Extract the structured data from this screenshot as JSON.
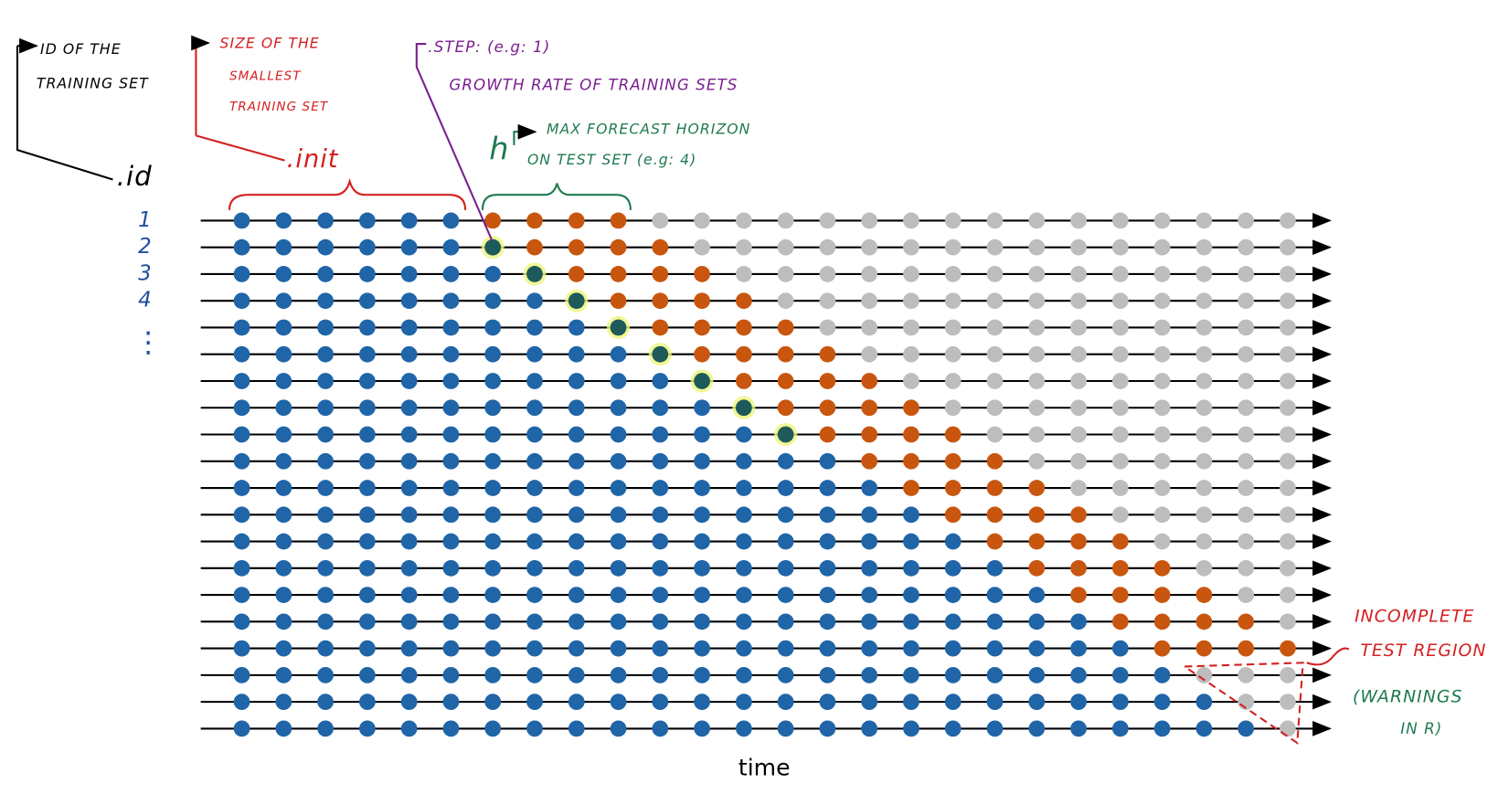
{
  "id_label": {
    "lines": [
      "ID OF THE",
      "TRAINING SET"
    ],
    "name": ".id"
  },
  "init_label": {
    "lines": [
      "SIZE OF THE",
      "SMALLEST",
      "TRAINING SET"
    ],
    "name": ".init"
  },
  "step_label": {
    "lines": [
      ".STEP: (e.g: 1)",
      "GROWTH RATE OF TRAINING SETS"
    ]
  },
  "h_label": {
    "name": "h",
    "lines": [
      "MAX FORECAST HORIZON",
      "ON TEST SET (e.g: 4)"
    ]
  },
  "row_ids": [
    "1",
    "2",
    "3",
    "4"
  ],
  "row_ellipsis": "⋮",
  "incomplete_label": {
    "lines": [
      "INCOMPLETE",
      "TEST REGION"
    ]
  },
  "warning_label": {
    "lines": [
      "(WARNINGS",
      "IN R)"
    ]
  },
  "x_axis_label": "time"
}
